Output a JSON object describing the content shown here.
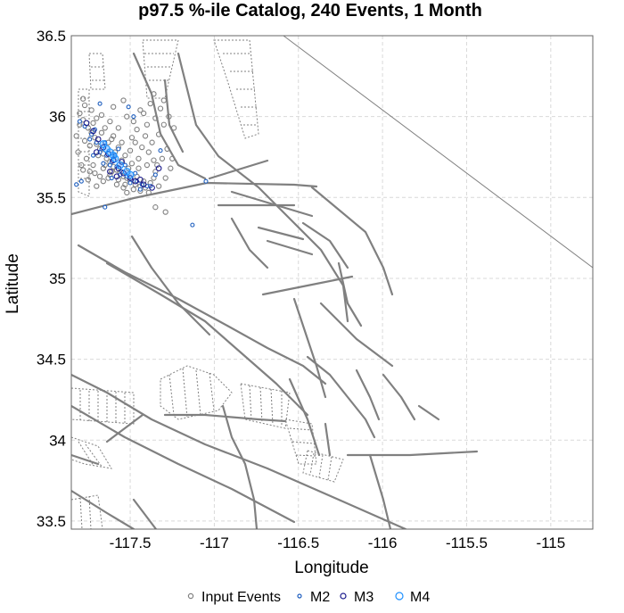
{
  "chart_data": {
    "type": "scatter",
    "title": "p97.5 %-ile Catalog, 240 Events, 1 Month",
    "xlabel": "Longitude",
    "ylabel": "Latitude",
    "xlim": [
      -117.85,
      -114.75
    ],
    "ylim": [
      33.45,
      36.5
    ],
    "x_ticks": [
      -117.5,
      -117,
      -116.5,
      -116,
      -115.5,
      -115
    ],
    "x_tick_labels": [
      "-117.5",
      "-117",
      "-116.5",
      "-116",
      "-115.5",
      "-115"
    ],
    "y_ticks": [
      33.5,
      34,
      34.5,
      35,
      35.5,
      36,
      36.5
    ],
    "y_tick_labels": [
      "33.5",
      "34",
      "34.5",
      "35",
      "35.5",
      "36",
      "36.5"
    ],
    "grid": true,
    "legend_position": "bottom",
    "legend": [
      {
        "name": "Input Events",
        "color": "#808080",
        "symbol": "small-circle"
      },
      {
        "name": "M2",
        "color": "#1f5fbf",
        "symbol": "small-circle"
      },
      {
        "name": "M3",
        "color": "#1a1a8c",
        "symbol": "circle"
      },
      {
        "name": "M4",
        "color": "#1e90ff",
        "symbol": "large-circle"
      }
    ],
    "series": [
      {
        "name": "Input Events",
        "color": "#808080",
        "points": [
          [
            -117.78,
            35.98
          ],
          [
            -117.75,
            35.93
          ],
          [
            -117.73,
            35.9
          ],
          [
            -117.71,
            35.87
          ],
          [
            -117.7,
            35.83
          ],
          [
            -117.68,
            35.8
          ],
          [
            -117.66,
            35.77
          ],
          [
            -117.64,
            35.74
          ],
          [
            -117.62,
            35.72
          ],
          [
            -117.6,
            35.69
          ],
          [
            -117.58,
            35.67
          ],
          [
            -117.56,
            35.65
          ],
          [
            -117.54,
            35.63
          ],
          [
            -117.52,
            35.62
          ],
          [
            -117.5,
            35.6
          ],
          [
            -117.47,
            35.58
          ],
          [
            -117.44,
            35.57
          ],
          [
            -117.41,
            35.56
          ],
          [
            -117.8,
            35.95
          ],
          [
            -117.77,
            35.85
          ],
          [
            -117.74,
            35.82
          ],
          [
            -117.69,
            35.76
          ],
          [
            -117.65,
            35.7
          ],
          [
            -117.61,
            35.66
          ],
          [
            -117.57,
            35.61
          ],
          [
            -117.53,
            35.58
          ],
          [
            -117.48,
            35.55
          ],
          [
            -117.72,
            35.96
          ],
          [
            -117.67,
            35.9
          ],
          [
            -117.63,
            35.84
          ],
          [
            -117.59,
            35.78
          ],
          [
            -117.55,
            35.73
          ],
          [
            -117.51,
            35.68
          ],
          [
            -117.46,
            35.63
          ],
          [
            -117.42,
            35.6
          ],
          [
            -117.38,
            35.59
          ],
          [
            -117.36,
            35.62
          ],
          [
            -117.35,
            35.66
          ],
          [
            -117.4,
            35.7
          ],
          [
            -117.45,
            35.74
          ],
          [
            -117.5,
            35.79
          ],
          [
            -117.55,
            35.84
          ],
          [
            -117.6,
            35.88
          ],
          [
            -117.65,
            35.93
          ],
          [
            -117.7,
            35.99
          ],
          [
            -117.77,
            36.07
          ],
          [
            -117.8,
            36.02
          ],
          [
            -117.76,
            35.74
          ],
          [
            -117.72,
            35.7
          ],
          [
            -117.68,
            35.63
          ],
          [
            -117.63,
            35.62
          ],
          [
            -117.58,
            35.58
          ],
          [
            -117.46,
            35.92
          ],
          [
            -117.4,
            35.95
          ],
          [
            -117.35,
            35.99
          ],
          [
            -117.42,
            36.02
          ],
          [
            -117.48,
            35.97
          ],
          [
            -117.32,
            36.05
          ],
          [
            -117.38,
            36.08
          ],
          [
            -117.44,
            36.04
          ],
          [
            -117.52,
            36.0
          ],
          [
            -117.3,
            35.95
          ],
          [
            -117.33,
            35.89
          ],
          [
            -117.37,
            35.84
          ],
          [
            -117.28,
            35.8
          ],
          [
            -117.31,
            35.74
          ],
          [
            -117.34,
            35.7
          ],
          [
            -117.82,
            35.88
          ],
          [
            -117.81,
            35.78
          ],
          [
            -117.79,
            35.7
          ],
          [
            -117.66,
            35.68
          ],
          [
            -117.62,
            35.64
          ],
          [
            -117.54,
            35.56
          ],
          [
            -117.44,
            35.54
          ],
          [
            -117.39,
            35.53
          ],
          [
            -117.33,
            35.57
          ],
          [
            -117.29,
            35.62
          ],
          [
            -117.26,
            35.68
          ],
          [
            -117.25,
            35.74
          ],
          [
            -117.49,
            35.87
          ],
          [
            -117.57,
            35.93
          ],
          [
            -117.62,
            35.97
          ],
          [
            -117.67,
            36.01
          ],
          [
            -117.73,
            36.04
          ],
          [
            -117.78,
            36.11
          ],
          [
            -117.71,
            35.65
          ],
          [
            -117.75,
            35.61
          ],
          [
            -117.53,
            35.76
          ],
          [
            -117.57,
            35.81
          ],
          [
            -117.61,
            35.86
          ],
          [
            -117.43,
            35.81
          ],
          [
            -117.39,
            35.78
          ],
          [
            -117.45,
            35.68
          ],
          [
            -117.49,
            35.71
          ],
          [
            -117.36,
            35.73
          ],
          [
            -117.27,
            36.0
          ],
          [
            -117.24,
            35.93
          ],
          [
            -117.3,
            36.1
          ],
          [
            -117.36,
            36.14
          ],
          [
            -117.6,
            36.06
          ],
          [
            -117.54,
            36.1
          ],
          [
            -117.66,
            35.6
          ],
          [
            -117.7,
            35.57
          ],
          [
            -117.35,
            35.44
          ],
          [
            -117.29,
            35.41
          ],
          [
            -117.78,
            35.67
          ],
          [
            -117.74,
            35.66
          ],
          [
            -117.47,
            35.84
          ],
          [
            -117.41,
            35.88
          ],
          [
            -117.52,
            35.53
          ]
        ]
      },
      {
        "name": "M2",
        "color": "#1f5fbf",
        "points": [
          [
            -117.77,
            35.94
          ],
          [
            -117.73,
            35.89
          ],
          [
            -117.7,
            35.84
          ],
          [
            -117.67,
            35.8
          ],
          [
            -117.64,
            35.76
          ],
          [
            -117.61,
            35.72
          ],
          [
            -117.58,
            35.69
          ],
          [
            -117.55,
            35.66
          ],
          [
            -117.52,
            35.63
          ],
          [
            -117.49,
            35.61
          ],
          [
            -117.46,
            35.6
          ],
          [
            -117.43,
            35.58
          ],
          [
            -117.4,
            35.57
          ],
          [
            -117.74,
            35.86
          ],
          [
            -117.68,
            35.78
          ],
          [
            -117.62,
            35.7
          ],
          [
            -117.56,
            35.64
          ],
          [
            -117.5,
            35.59
          ],
          [
            -117.44,
            35.55
          ],
          [
            -117.71,
            35.92
          ],
          [
            -117.65,
            35.84
          ],
          [
            -117.59,
            35.76
          ],
          [
            -117.53,
            35.7
          ],
          [
            -117.47,
            35.65
          ],
          [
            -117.8,
            35.97
          ],
          [
            -117.79,
            35.6
          ],
          [
            -117.68,
            36.08
          ],
          [
            -117.51,
            36.06
          ],
          [
            -117.38,
            35.57
          ],
          [
            -117.61,
            35.62
          ],
          [
            -117.66,
            35.71
          ],
          [
            -117.72,
            35.76
          ],
          [
            -117.57,
            35.8
          ],
          [
            -117.35,
            35.64
          ],
          [
            -117.32,
            35.79
          ],
          [
            -117.05,
            35.6
          ],
          [
            -117.13,
            35.33
          ],
          [
            -117.65,
            35.44
          ],
          [
            -117.82,
            35.58
          ],
          [
            -117.48,
            36.0
          ]
        ]
      },
      {
        "name": "M3",
        "color": "#1a1a8c",
        "points": [
          [
            -117.72,
            35.91
          ],
          [
            -117.69,
            35.86
          ],
          [
            -117.66,
            35.81
          ],
          [
            -117.63,
            35.77
          ],
          [
            -117.6,
            35.73
          ],
          [
            -117.57,
            35.68
          ],
          [
            -117.54,
            35.65
          ],
          [
            -117.5,
            35.62
          ],
          [
            -117.47,
            35.6
          ],
          [
            -117.42,
            35.58
          ],
          [
            -117.76,
            35.96
          ],
          [
            -117.62,
            35.66
          ],
          [
            -117.55,
            35.72
          ],
          [
            -117.44,
            35.61
          ],
          [
            -117.37,
            35.56
          ],
          [
            -117.7,
            35.78
          ],
          [
            -117.58,
            35.63
          ],
          [
            -117.33,
            35.68
          ]
        ]
      },
      {
        "name": "M4",
        "color": "#1e90ff",
        "points": [
          [
            -117.66,
            35.83
          ],
          [
            -117.62,
            35.78
          ],
          [
            -117.59,
            35.74
          ],
          [
            -117.56,
            35.7
          ],
          [
            -117.52,
            35.66
          ],
          [
            -117.64,
            35.8
          ],
          [
            -117.6,
            35.76
          ],
          [
            -117.5,
            35.64
          ]
        ]
      }
    ]
  }
}
